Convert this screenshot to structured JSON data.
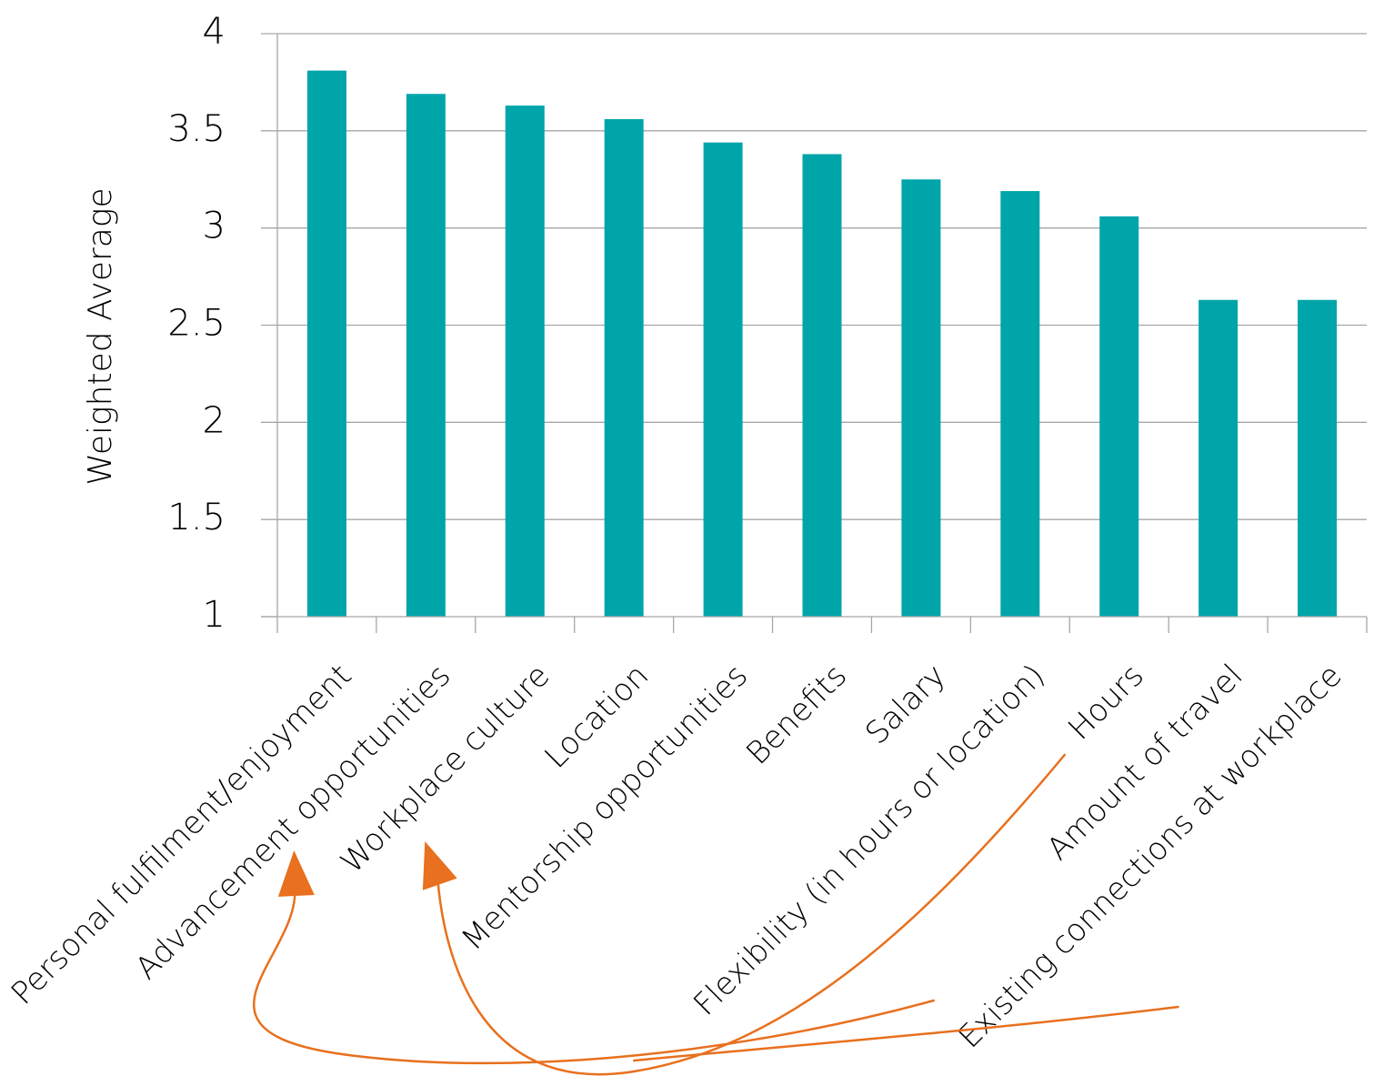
{
  "chart_data": {
    "type": "bar",
    "title": "",
    "xlabel": "",
    "ylabel": "Weighted Average",
    "ylim": [
      1,
      4
    ],
    "yticks": [
      1,
      1.5,
      2,
      2.5,
      3,
      3.5,
      4
    ],
    "ytick_labels": [
      "1",
      "1.5",
      "2",
      "2.5",
      "3",
      "3.5",
      "4"
    ],
    "grid": true,
    "categories": [
      "Personal fulfilment/enjoyment",
      "Advancement opportunities",
      "Workplace culture",
      "Location",
      "Mentorship opportunities",
      "Benefits",
      "Salary",
      "Flexibility (in hours or location)",
      "Hours",
      "Amount of travel",
      "Existing connections at workplace"
    ],
    "values": [
      3.81,
      3.69,
      3.63,
      3.56,
      3.44,
      3.38,
      3.25,
      3.19,
      3.06,
      2.63,
      2.63
    ],
    "colors": {
      "bar": "#00a5aa",
      "gridline": "#a6a6a6",
      "axis": "#a6a6a6",
      "annotation_arrow": "#e8701e"
    },
    "annotations": [
      {
        "type": "arrow",
        "from_category": "Flexibility (in hours or location)",
        "to_category": "Advancement opportunities"
      },
      {
        "type": "arrow",
        "from_category": "Hours",
        "to_category": "Workplace culture"
      },
      {
        "type": "arrow",
        "from_category": "Existing connections at workplace",
        "to_category": "Workplace culture"
      }
    ]
  }
}
